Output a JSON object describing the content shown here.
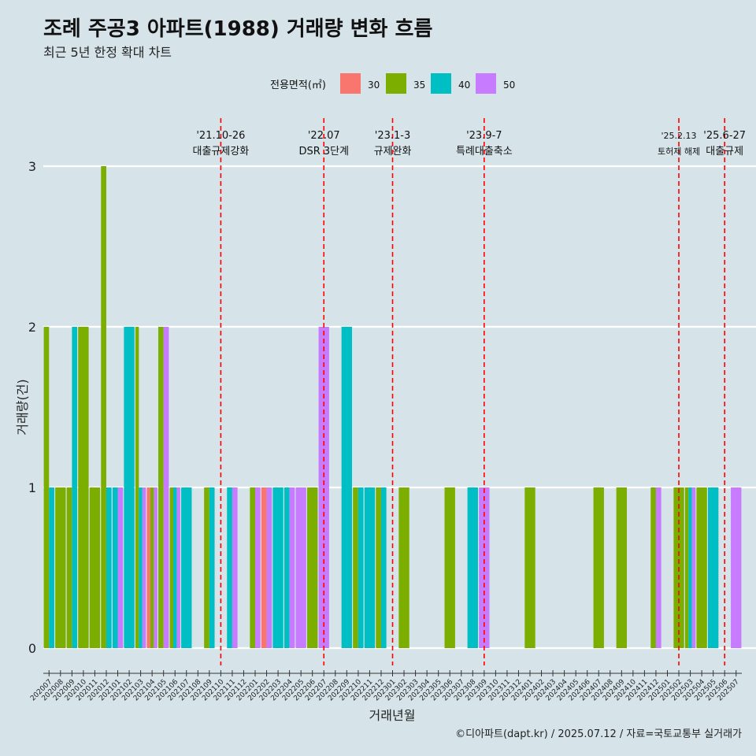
{
  "title": "조례 주공3 아파트(1988) 거래량 변화 흐름",
  "subtitle": "최근 5년 한정 확대 차트",
  "caption": "©디아파트(dapt.kr) / 2025.07.12 / 자료=국토교통부 실거래가",
  "colors": {
    "background": "#d6e4ea",
    "grid": "#ffffff",
    "event_line": "#ff0000"
  },
  "chart_data": {
    "type": "bar",
    "xlabel": "거래년월",
    "ylabel": "거래량(건)",
    "ylim": [
      0,
      3
    ],
    "yticks": [
      0,
      1,
      2,
      3
    ],
    "grid": true,
    "legend": {
      "title": "전용면적(㎡)",
      "position": "top"
    },
    "categories": [
      "202007",
      "202008",
      "202009",
      "202010",
      "202011",
      "202012",
      "202101",
      "202102",
      "202103",
      "202104",
      "202105",
      "202106",
      "202107",
      "202108",
      "202109",
      "202110",
      "202111",
      "202112",
      "202201",
      "202202",
      "202203",
      "202204",
      "202205",
      "202206",
      "202207",
      "202208",
      "202209",
      "202210",
      "202211",
      "202212",
      "202301",
      "202302",
      "202303",
      "202304",
      "202305",
      "202306",
      "202307",
      "202308",
      "202309",
      "202310",
      "202311",
      "202312",
      "202401",
      "202402",
      "202403",
      "202404",
      "202405",
      "202406",
      "202407",
      "202408",
      "202409",
      "202410",
      "202411",
      "202412",
      "202501",
      "202502",
      "202503",
      "202504",
      "202505",
      "202506",
      "202507"
    ],
    "series": [
      {
        "name": "30",
        "color": "#f8766d",
        "values": [
          0,
          0,
          0,
          0,
          0,
          0,
          0,
          0,
          0,
          1,
          0,
          0,
          0,
          0,
          0,
          0,
          0,
          0,
          0,
          1,
          0,
          0,
          0,
          0,
          0,
          0,
          0,
          0,
          0,
          0,
          0,
          0,
          0,
          0,
          0,
          0,
          0,
          0,
          0,
          0,
          0,
          0,
          0,
          0,
          0,
          0,
          0,
          0,
          0,
          0,
          0,
          0,
          0,
          0,
          0,
          0,
          0,
          0,
          0,
          0,
          0
        ]
      },
      {
        "name": "35",
        "color": "#7cae00",
        "values": [
          2,
          1,
          1,
          2,
          1,
          3,
          0,
          0,
          2,
          1,
          2,
          1,
          0,
          0,
          1,
          0,
          0,
          0,
          1,
          0,
          0,
          0,
          0,
          1,
          0,
          0,
          0,
          1,
          0,
          1,
          0,
          1,
          0,
          0,
          0,
          1,
          0,
          0,
          0,
          0,
          0,
          0,
          1,
          0,
          0,
          0,
          0,
          0,
          1,
          0,
          1,
          0,
          0,
          1,
          0,
          1,
          1,
          1,
          0,
          0,
          0
        ]
      },
      {
        "name": "40",
        "color": "#00bfc4",
        "values": [
          1,
          0,
          2,
          0,
          0,
          1,
          1,
          2,
          1,
          0,
          0,
          1,
          1,
          0,
          1,
          0,
          1,
          0,
          0,
          0,
          1,
          1,
          0,
          0,
          0,
          0,
          2,
          1,
          1,
          1,
          0,
          0,
          0,
          0,
          0,
          0,
          0,
          1,
          0,
          0,
          0,
          0,
          0,
          0,
          0,
          0,
          0,
          0,
          0,
          0,
          0,
          0,
          0,
          0,
          0,
          0,
          1,
          0,
          1,
          0,
          0
        ]
      },
      {
        "name": "50",
        "color": "#c77cff",
        "values": [
          0,
          0,
          0,
          0,
          0,
          0,
          1,
          0,
          1,
          1,
          2,
          1,
          0,
          0,
          0,
          0,
          1,
          0,
          1,
          1,
          0,
          1,
          1,
          0,
          2,
          0,
          0,
          0,
          0,
          0,
          0,
          0,
          0,
          0,
          0,
          0,
          0,
          0,
          1,
          0,
          0,
          0,
          0,
          0,
          0,
          0,
          0,
          0,
          0,
          0,
          0,
          0,
          0,
          1,
          0,
          0,
          1,
          0,
          0,
          0,
          1
        ]
      }
    ],
    "annotations": [
      {
        "month": "202110",
        "date": "'21.10-26",
        "label": "대출규제강화"
      },
      {
        "month": "202207",
        "date": "'22.07",
        "label": "DSR 3단계"
      },
      {
        "month": "202301",
        "date": "'23.1-3",
        "label": "규제완화"
      },
      {
        "month": "202309",
        "date": "'23.9-7",
        "label": "특례대출축소"
      },
      {
        "month": "202502",
        "date": "'25.2.13",
        "label": "토허제 해제"
      },
      {
        "month": "202506",
        "date": "'25.6-27",
        "label": "대출규제"
      }
    ]
  }
}
